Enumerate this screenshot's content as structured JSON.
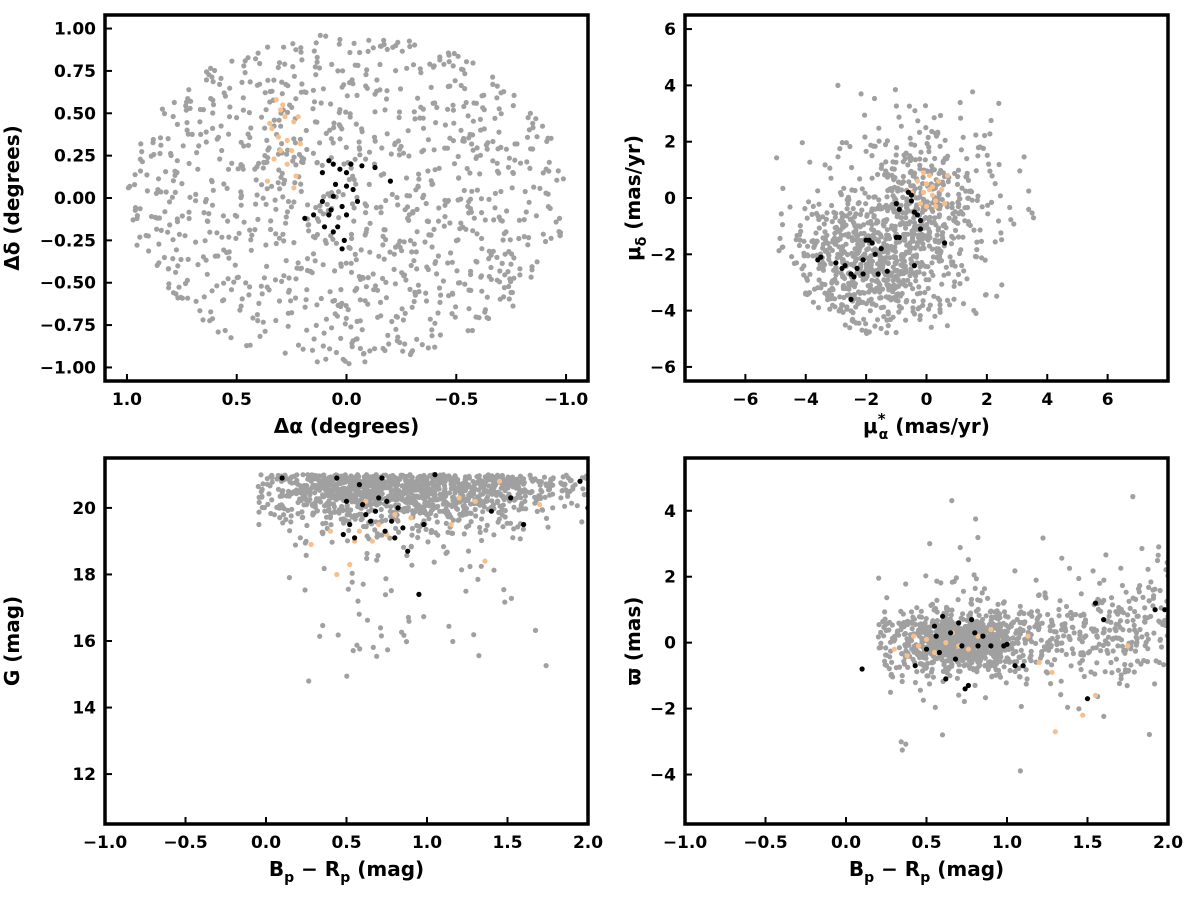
{
  "colors": {
    "background_points": "#a0a0a0",
    "member_points": "#000000",
    "highlight_points": "#f7c08a",
    "frame": "#000000"
  },
  "chart_data": [
    {
      "type": "scatter",
      "xlabel": "Δα (degrees)",
      "ylabel": "Δδ (degrees)",
      "xlim": [
        1.1,
        -1.1
      ],
      "ylim": [
        -1.08,
        1.08
      ],
      "x_inverted": true,
      "xticks": [
        1.0,
        0.5,
        0.0,
        -0.5,
        -1.0
      ],
      "xtick_labels": [
        "1.0",
        "0.5",
        "0.0",
        "−0.5",
        "−1.0"
      ],
      "yticks": [
        1.0,
        0.75,
        0.5,
        0.25,
        0.0,
        -0.25,
        -0.5,
        -0.75,
        -1.0
      ],
      "ytick_labels": [
        "1.00",
        "0.75",
        "0.50",
        "0.25",
        "0.00",
        "−0.25",
        "−0.50",
        "−0.75",
        "−1.00"
      ],
      "series": [
        {
          "color": "#a0a0a0",
          "generated": {
            "kind": "disk",
            "n": 1050,
            "cx": 0.0,
            "cy": 0.0,
            "rx": 1.0,
            "ry": 0.98,
            "seed": 11
          }
        },
        {
          "color": "#f7c08a",
          "points": [
            [
              0.32,
              0.58
            ],
            [
              0.3,
              0.52
            ],
            [
              0.28,
              0.48
            ],
            [
              0.34,
              0.41
            ],
            [
              0.31,
              0.36
            ],
            [
              0.27,
              0.34
            ],
            [
              0.24,
              0.45
            ],
            [
              0.22,
              0.48
            ],
            [
              0.25,
              0.28
            ],
            [
              0.3,
              0.28
            ],
            [
              0.33,
              0.23
            ],
            [
              0.27,
              0.2
            ],
            [
              0.21,
              0.32
            ],
            [
              0.23,
              0.13
            ],
            [
              0.36,
              0.1
            ],
            [
              0.24,
              0.06
            ],
            [
              0.29,
              0.55
            ],
            [
              0.35,
              0.44
            ]
          ]
        },
        {
          "color": "#000000",
          "points": [
            [
              0.08,
              0.22
            ],
            [
              0.06,
              0.2
            ],
            [
              0.03,
              0.17
            ],
            [
              0.11,
              0.15
            ],
            [
              0.0,
              0.15
            ],
            [
              -0.02,
              0.2
            ],
            [
              -0.07,
              0.19
            ],
            [
              -0.13,
              0.18
            ],
            [
              -0.2,
              0.1
            ],
            [
              0.0,
              0.07
            ],
            [
              -0.03,
              0.05
            ],
            [
              0.05,
              0.08
            ],
            [
              0.11,
              -0.02
            ],
            [
              0.15,
              -0.1
            ],
            [
              0.19,
              -0.12
            ],
            [
              0.08,
              -0.1
            ],
            [
              0.07,
              -0.07
            ],
            [
              0.02,
              -0.05
            ],
            [
              0.0,
              -0.1
            ],
            [
              0.04,
              -0.17
            ],
            [
              0.1,
              -0.17
            ],
            [
              0.06,
              -0.2
            ],
            [
              0.01,
              -0.25
            ],
            [
              0.02,
              -0.3
            ],
            [
              -0.05,
              -0.02
            ],
            [
              0.06,
              0.01
            ]
          ]
        }
      ]
    },
    {
      "type": "scatter",
      "xlabel": "μ*α (mas/yr)",
      "ylabel": "μδ (mas/yr)",
      "xlim": [
        -8,
        8
      ],
      "ylim": [
        -6.5,
        6.5
      ],
      "xticks": [
        -6,
        -4,
        -2,
        0,
        2,
        4,
        6
      ],
      "xtick_labels": [
        "−6",
        "−4",
        "−2",
        "0",
        "2",
        "4",
        "6"
      ],
      "yticks": [
        6,
        4,
        2,
        0,
        -2,
        -4,
        -6
      ],
      "ytick_labels": [
        "6",
        "4",
        "2",
        "0",
        "−2",
        "−4",
        "−6"
      ],
      "series": [
        {
          "color": "#a0a0a0",
          "generated": {
            "kind": "blend",
            "n": 1100,
            "seed": 23,
            "blobs": [
              {
                "w": 0.42,
                "cx": -2.0,
                "cy": -2.6,
                "sx": 1.2,
                "sy": 1.1
              },
              {
                "w": 0.2,
                "cx": -0.3,
                "cy": -0.4,
                "sx": 0.9,
                "sy": 1.3
              },
              {
                "w": 0.38,
                "cx": -0.8,
                "cy": -1.0,
                "sx": 2.1,
                "sy": 2.0
              }
            ],
            "clip": {
              "xmin": -5.0,
              "xmax": 4.8,
              "ymin": -4.9,
              "ymax": 4.8
            }
          }
        },
        {
          "color": "#f7c08a",
          "points": [
            [
              0.0,
              0.5
            ],
            [
              0.1,
              0.3
            ],
            [
              -0.1,
              0.2
            ],
            [
              0.2,
              0.1
            ],
            [
              0.3,
              -0.1
            ],
            [
              -0.2,
              -0.2
            ],
            [
              0.0,
              -0.3
            ],
            [
              0.4,
              0.6
            ],
            [
              0.5,
              0.3
            ],
            [
              -0.3,
              0.6
            ],
            [
              0.1,
              0.8
            ],
            [
              -0.4,
              -0.5
            ],
            [
              0.3,
              -0.3
            ],
            [
              0.7,
              0.8
            ],
            [
              -0.1,
              0.9
            ],
            [
              0.2,
              0.4
            ],
            [
              0.6,
              -0.2
            ],
            [
              -0.5,
              0.2
            ]
          ]
        },
        {
          "color": "#000000",
          "points": [
            [
              -0.6,
              0.2
            ],
            [
              -0.5,
              0.1
            ],
            [
              -0.5,
              -0.1
            ],
            [
              -0.4,
              -0.5
            ],
            [
              -0.3,
              -0.6
            ],
            [
              -0.2,
              -0.8
            ],
            [
              -0.2,
              -1.1
            ],
            [
              -1.0,
              -0.2
            ],
            [
              -0.9,
              -0.4
            ],
            [
              -1.0,
              -1.4
            ],
            [
              -0.9,
              -1.4
            ],
            [
              -1.5,
              -1.8
            ],
            [
              -1.7,
              -2.0
            ],
            [
              -1.8,
              -1.6
            ],
            [
              -1.9,
              -1.5
            ],
            [
              -2.0,
              -1.5
            ],
            [
              -2.1,
              -2.2
            ],
            [
              -2.3,
              -2.5
            ],
            [
              -2.4,
              -2.8
            ],
            [
              -2.5,
              -2.7
            ],
            [
              -2.7,
              -2.4
            ],
            [
              -2.8,
              -2.5
            ],
            [
              -3.0,
              -2.3
            ],
            [
              -3.5,
              -2.1
            ],
            [
              -3.6,
              -2.2
            ],
            [
              -2.5,
              -3.6
            ],
            [
              -1.6,
              -2.7
            ],
            [
              -1.3,
              -2.6
            ],
            [
              -2.1,
              -2.7
            ],
            [
              0.6,
              -1.6
            ],
            [
              -0.4,
              -2.4
            ]
          ]
        }
      ]
    },
    {
      "type": "scatter",
      "xlabel": "Bp − Rp (mag)",
      "ylabel": "G (mag)",
      "xlim": [
        -1.0,
        2.0
      ],
      "ylim": [
        10.5,
        21.5
      ],
      "xticks": [
        -1.0,
        -0.5,
        0.0,
        0.5,
        1.0,
        1.5,
        2.0
      ],
      "xtick_labels": [
        "−1.0",
        "−0.5",
        "0.0",
        "0.5",
        "1.0",
        "1.5",
        "2.0"
      ],
      "yticks": [
        12,
        14,
        16,
        18,
        20
      ],
      "ytick_labels": [
        "12",
        "14",
        "16",
        "18",
        "20"
      ],
      "series": [
        {
          "color": "#a0a0a0",
          "generated": {
            "kind": "cmd",
            "n": 1250,
            "seed": 37
          }
        },
        {
          "color": "#f7c08a",
          "points": [
            [
              0.28,
              18.9
            ],
            [
              0.44,
              18.0
            ],
            [
              0.52,
              18.3
            ],
            [
              0.55,
              19.0
            ],
            [
              0.58,
              19.3
            ],
            [
              0.62,
              20.2
            ],
            [
              0.66,
              19.0
            ],
            [
              0.7,
              19.5
            ],
            [
              0.8,
              19.8
            ],
            [
              0.9,
              19.7
            ],
            [
              1.15,
              19.5
            ],
            [
              1.2,
              20.3
            ],
            [
              1.3,
              20.2
            ],
            [
              1.36,
              18.4
            ],
            [
              1.45,
              20.8
            ],
            [
              1.7,
              20.1
            ],
            [
              0.4,
              19.3
            ],
            [
              0.75,
              19.2
            ]
          ]
        },
        {
          "color": "#000000",
          "points": [
            [
              0.1,
              20.9
            ],
            [
              0.44,
              20.9
            ],
            [
              0.5,
              20.2
            ],
            [
              0.52,
              19.5
            ],
            [
              0.55,
              19.1
            ],
            [
              0.6,
              20.1
            ],
            [
              0.62,
              19.8
            ],
            [
              0.65,
              19.6
            ],
            [
              0.68,
              19.9
            ],
            [
              0.7,
              20.3
            ],
            [
              0.72,
              20.9
            ],
            [
              0.74,
              19.3
            ],
            [
              0.75,
              20.2
            ],
            [
              0.78,
              19.6
            ],
            [
              0.8,
              19.1
            ],
            [
              0.82,
              20.0
            ],
            [
              0.85,
              19.4
            ],
            [
              0.88,
              18.7
            ],
            [
              0.95,
              17.4
            ],
            [
              0.98,
              19.5
            ],
            [
              1.05,
              21.0
            ],
            [
              1.4,
              19.9
            ],
            [
              1.52,
              20.3
            ],
            [
              1.6,
              19.5
            ],
            [
              1.95,
              20.8
            ],
            [
              2.0,
              20.0
            ],
            [
              0.48,
              19.2
            ],
            [
              0.58,
              20.7
            ]
          ]
        }
      ]
    },
    {
      "type": "scatter",
      "xlabel": "Bp − Rp (mag)",
      "ylabel": "ϖ (mas)",
      "xlim": [
        -1.0,
        2.0
      ],
      "ylim": [
        -5.5,
        5.6
      ],
      "xticks": [
        -1.0,
        -0.5,
        0.0,
        0.5,
        1.0,
        1.5,
        2.0
      ],
      "xtick_labels": [
        "−1.0",
        "−0.5",
        "0.0",
        "0.5",
        "1.0",
        "1.5",
        "2.0"
      ],
      "yticks": [
        4,
        2,
        0,
        -2,
        -4
      ],
      "ytick_labels": [
        "4",
        "2",
        "0",
        "−2",
        "−4"
      ],
      "series": [
        {
          "color": "#a0a0a0",
          "generated": {
            "kind": "plx",
            "n": 1300,
            "seed": 53
          }
        },
        {
          "color": "#f7c08a",
          "points": [
            [
              0.3,
              -0.2
            ],
            [
              0.42,
              0.2
            ],
            [
              0.45,
              -0.1
            ],
            [
              0.5,
              0.1
            ],
            [
              0.55,
              -0.3
            ],
            [
              0.62,
              0.0
            ],
            [
              0.66,
              0.3
            ],
            [
              0.7,
              -0.1
            ],
            [
              0.76,
              -0.2
            ],
            [
              0.82,
              0.2
            ],
            [
              0.9,
              0.4
            ],
            [
              1.13,
              0.2
            ],
            [
              1.2,
              -0.6
            ],
            [
              1.28,
              -0.9
            ],
            [
              1.3,
              -2.7
            ],
            [
              1.47,
              -2.2
            ],
            [
              1.55,
              -1.6
            ],
            [
              1.75,
              -0.1
            ],
            [
              0.38,
              -0.4
            ]
          ]
        },
        {
          "color": "#000000",
          "points": [
            [
              0.1,
              -0.8
            ],
            [
              0.43,
              -0.7
            ],
            [
              0.5,
              -0.2
            ],
            [
              0.55,
              0.5
            ],
            [
              0.56,
              0.2
            ],
            [
              0.58,
              -0.3
            ],
            [
              0.6,
              0.8
            ],
            [
              0.62,
              -1.1
            ],
            [
              0.65,
              0.3
            ],
            [
              0.7,
              0.6
            ],
            [
              0.72,
              -0.1
            ],
            [
              0.74,
              -1.4
            ],
            [
              0.76,
              -1.3
            ],
            [
              0.78,
              0.7
            ],
            [
              0.8,
              0.3
            ],
            [
              0.82,
              -0.1
            ],
            [
              0.85,
              0.2
            ],
            [
              0.9,
              -0.1
            ],
            [
              0.98,
              -0.1
            ],
            [
              1.0,
              -0.05
            ],
            [
              1.05,
              -0.7
            ],
            [
              1.1,
              -0.7
            ],
            [
              1.5,
              -1.7
            ],
            [
              1.55,
              1.2
            ],
            [
              1.6,
              0.7
            ],
            [
              1.92,
              1.0
            ],
            [
              1.98,
              1.0
            ],
            [
              0.68,
              -0.5
            ]
          ]
        }
      ]
    }
  ]
}
